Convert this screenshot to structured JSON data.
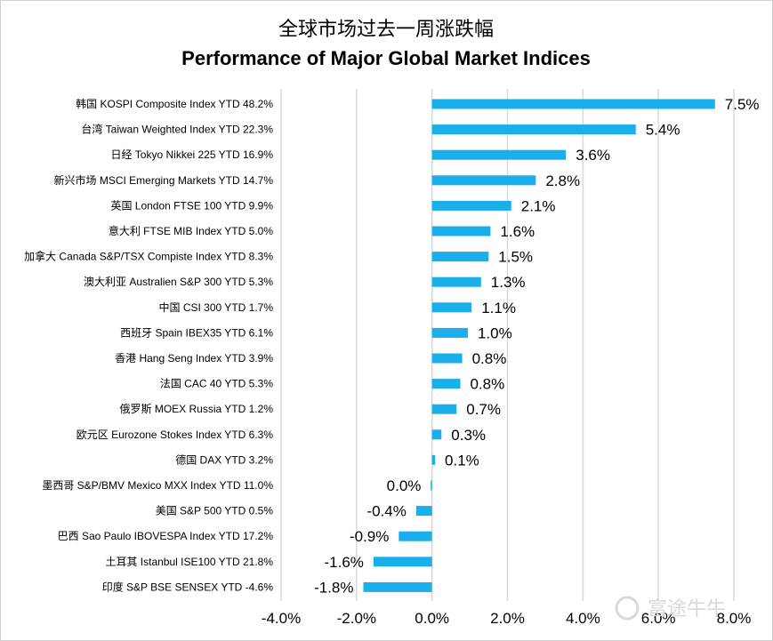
{
  "chart_data": {
    "type": "bar",
    "orientation": "horizontal",
    "title": "全球市场过去一周涨跌幅",
    "subtitle": "Performance of Major Global Market Indices",
    "categories": [
      "韩国 KOSPI Composite Index YTD 48.2%",
      "台湾 Taiwan Weighted Index YTD 22.3%",
      "日经 Tokyo Nikkei 225  YTD 16.9%",
      "新兴市场 MSCI Emerging Markets YTD 14.7%",
      "英国 London FTSE 100 YTD 9.9%",
      "意大利 FTSE MIB Index YTD 5.0%",
      "加拿大 Canada S&P/TSX Compiste Index YTD 8.3%",
      "澳大利亚 Australien S&P 300 YTD 5.3%",
      "中国 CSI 300 YTD 1.7%",
      "西班牙 Spain IBEX35 YTD 6.1%",
      "香港 Hang Seng Index YTD 3.9%",
      "法国 CAC 40  YTD 5.3%",
      "俄罗斯 MOEX Russia  YTD 1.2%",
      "欧元区 Eurozone Stokes Index YTD 6.3%",
      "德国 DAX YTD 3.2%",
      "墨西哥 S&P/BMV Mexico MXX Index YTD 11.0%",
      "美国 S&P 500  YTD 0.5%",
      "巴西 Sao Paulo IBOVESPA Index YTD 17.2%",
      "土耳其 Istanbul ISE100 YTD 21.8%",
      "印度 S&P BSE SENSEX YTD -4.6%"
    ],
    "values": [
      7.5,
      5.4,
      3.55,
      2.75,
      2.1,
      1.55,
      1.5,
      1.3,
      1.05,
      0.95,
      0.8,
      0.75,
      0.65,
      0.25,
      0.08,
      -0.03,
      -0.42,
      -0.88,
      -1.55,
      -1.82
    ],
    "value_labels": [
      "7.5%",
      "5.4%",
      "3.6%",
      "2.8%",
      "2.1%",
      "1.6%",
      "1.5%",
      "1.3%",
      "1.1%",
      "1.0%",
      "0.8%",
      "0.8%",
      "0.7%",
      "0.3%",
      "0.1%",
      "0.0%",
      "-0.4%",
      "-0.9%",
      "-1.6%",
      "-1.8%"
    ],
    "xlim": [
      -4.0,
      8.0
    ],
    "x_ticks": [
      -4,
      -2,
      0,
      2,
      4,
      6,
      8
    ],
    "x_tick_labels": [
      "-4.0%",
      "-2.0%",
      "0.0%",
      "2.0%",
      "4.0%",
      "6.0%",
      "8.0%"
    ],
    "bar_color": "#1aaeeb",
    "grid": "vertical"
  },
  "watermark": "富途牛牛"
}
